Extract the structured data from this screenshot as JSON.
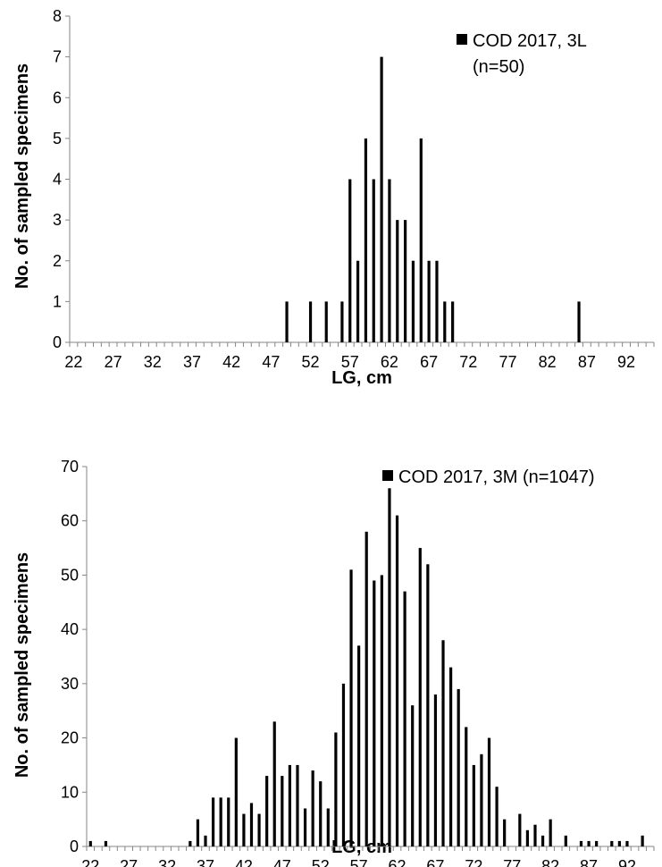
{
  "chart_data": [
    {
      "type": "bar",
      "x": [
        49,
        52,
        54,
        56,
        57,
        58,
        59,
        60,
        61,
        62,
        63,
        64,
        65,
        66,
        67,
        68,
        69,
        70,
        86
      ],
      "values": [
        1,
        1,
        1,
        1,
        4,
        2,
        5,
        4,
        7,
        4,
        3,
        3,
        2,
        5,
        2,
        2,
        1,
        1,
        1
      ],
      "xlim": [
        22,
        95
      ],
      "ylim": [
        0,
        8
      ],
      "x_tick_labels": [
        "22",
        "27",
        "32",
        "37",
        "42",
        "47",
        "52",
        "57",
        "62",
        "67",
        "72",
        "77",
        "82",
        "87",
        "92"
      ],
      "y_tick_labels": [
        "0",
        "1",
        "2",
        "3",
        "4",
        "5",
        "6",
        "7",
        "8"
      ],
      "xlabel": "LG, cm",
      "ylabel": "No. of sampled specimens",
      "legend": [
        "COD 2017, 3L",
        "(n=50)"
      ],
      "legend_position": "top-right",
      "bar_color": "#000000"
    },
    {
      "type": "bar",
      "x": [
        22,
        24,
        35,
        36,
        37,
        38,
        39,
        40,
        41,
        42,
        43,
        44,
        45,
        46,
        47,
        48,
        49,
        50,
        51,
        52,
        53,
        54,
        55,
        56,
        57,
        58,
        59,
        60,
        61,
        62,
        63,
        64,
        65,
        66,
        67,
        68,
        69,
        70,
        71,
        72,
        73,
        74,
        75,
        76,
        78,
        79,
        80,
        81,
        82,
        84,
        86,
        87,
        88,
        90,
        91,
        92,
        94
      ],
      "values": [
        1,
        1,
        1,
        5,
        2,
        9,
        9,
        9,
        20,
        6,
        8,
        6,
        13,
        23,
        13,
        15,
        15,
        7,
        14,
        12,
        7,
        21,
        30,
        51,
        37,
        58,
        49,
        50,
        66,
        61,
        47,
        26,
        55,
        52,
        28,
        38,
        33,
        29,
        22,
        15,
        17,
        20,
        11,
        5,
        6,
        3,
        4,
        2,
        5,
        2,
        1,
        1,
        1,
        1,
        1,
        1,
        2
      ],
      "xlim": [
        22,
        95
      ],
      "ylim": [
        0,
        70
      ],
      "x_tick_labels": [
        "22",
        "27",
        "32",
        "37",
        "42",
        "47",
        "52",
        "57",
        "62",
        "67",
        "72",
        "77",
        "82",
        "87",
        "92"
      ],
      "y_tick_labels": [
        "0",
        "10",
        "20",
        "30",
        "40",
        "50",
        "60",
        "70"
      ],
      "xlabel": "LG, cm",
      "ylabel": "No. of sampled specimens",
      "legend": [
        "COD 2017, 3M (n=1047)"
      ],
      "legend_position": "top-right",
      "bar_color": "#000000"
    }
  ]
}
